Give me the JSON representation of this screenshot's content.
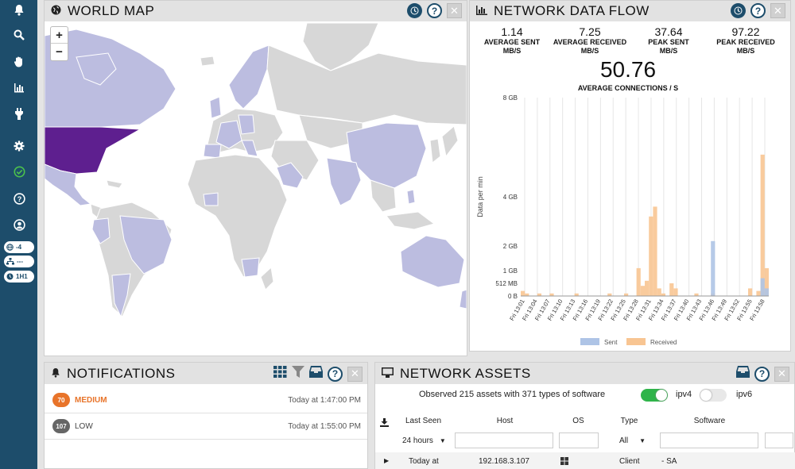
{
  "sidebar": {
    "pills": [
      "-4",
      "---",
      "1H1"
    ]
  },
  "world_map": {
    "title": "WORLD MAP",
    "zoom_in": "+",
    "zoom_out": "−",
    "highlight_color": "#5e1f8f",
    "light_color": "#bcbde0",
    "base_color": "#d7d7d7"
  },
  "network_data_flow": {
    "title": "NETWORK DATA FLOW",
    "stats": [
      {
        "value": "1.14",
        "label": "AVERAGE SENT",
        "unit": "MB/S"
      },
      {
        "value": "7.25",
        "label": "AVERAGE RECEIVED",
        "unit": "MB/S"
      },
      {
        "value": "37.64",
        "label": "PEAK SENT",
        "unit": "MB/S"
      },
      {
        "value": "97.22",
        "label": "PEAK RECEIVED",
        "unit": "MB/S"
      }
    ],
    "big_value": "50.76",
    "big_label": "AVERAGE CONNECTIONS / S"
  },
  "chart_data": {
    "type": "bar",
    "ylabel": "Data per min",
    "y_ticks": [
      "0 B",
      "512 MB",
      "1 GB",
      "2 GB",
      "4 GB",
      "8 GB"
    ],
    "x_ticks": [
      "Fri 13:01",
      "Fri 13:04",
      "Fri 13:07",
      "Fri 13:10",
      "Fri 13:13",
      "Fri 13:16",
      "Fri 13:19",
      "Fri 13:22",
      "Fri 13:25",
      "Fri 13:28",
      "Fri 13:31",
      "Fri 13:34",
      "Fri 13:37",
      "Fri 13:40",
      "Fri 13:43",
      "Fri 13:46",
      "Fri 13:49",
      "Fri 13:52",
      "Fri 13:55",
      "Fri 13:58"
    ],
    "series": [
      {
        "name": "Sent",
        "color": "#aec4e6",
        "values": [
          0,
          0,
          0,
          0,
          0,
          0,
          0,
          0,
          0,
          0,
          0,
          0,
          0,
          0,
          0,
          0,
          0,
          0,
          0,
          0,
          0,
          0,
          0,
          0,
          0,
          0,
          0,
          0,
          0,
          0,
          0,
          0,
          0,
          0,
          0,
          0,
          0,
          0,
          0,
          0,
          0,
          0,
          0,
          0,
          0,
          0,
          2.2,
          0,
          0,
          0,
          0,
          0,
          0,
          0,
          0,
          0,
          0,
          0,
          0.7,
          0.3
        ]
      },
      {
        "name": "Received",
        "color": "#f8c592",
        "values": [
          0.2,
          0.1,
          0,
          0,
          0.1,
          0,
          0,
          0.1,
          0,
          0,
          0,
          0,
          0,
          0.1,
          0,
          0,
          0,
          0,
          0,
          0,
          0,
          0.1,
          0,
          0,
          0,
          0.1,
          0,
          0,
          1.1,
          0.4,
          0.6,
          3.2,
          3.6,
          0.3,
          0.1,
          0,
          0.5,
          0.3,
          0,
          0,
          0,
          0,
          0.1,
          0,
          0,
          0,
          0.1,
          0,
          0,
          0,
          0,
          0,
          0,
          0,
          0,
          0.3,
          0,
          0.2,
          5.7,
          1.1
        ]
      }
    ],
    "ylim": [
      "0 B",
      "8 GB"
    ]
  },
  "notifications": {
    "title": "NOTIFICATIONS",
    "items": [
      {
        "count": "70",
        "severity": "MEDIUM",
        "time": "Today at 1:47:00 PM",
        "color": "#e8742a"
      },
      {
        "count": "107",
        "severity": "LOW",
        "time": "Today at 1:55:00 PM",
        "color": "#666666"
      }
    ]
  },
  "network_assets": {
    "title": "NETWORK ASSETS",
    "summary": "Observed 215 assets with 371 types of software",
    "ipv4_label": "ipv4",
    "ipv6_label": "ipv6",
    "columns": [
      "Last Seen",
      "Host",
      "OS",
      "Type",
      "Software"
    ],
    "filters": {
      "last_seen": "24 hours",
      "type": "All"
    },
    "rows": [
      {
        "last_seen": "Today at",
        "host": "192.168.3.107",
        "type": "Client",
        "software": "- SA"
      }
    ]
  }
}
